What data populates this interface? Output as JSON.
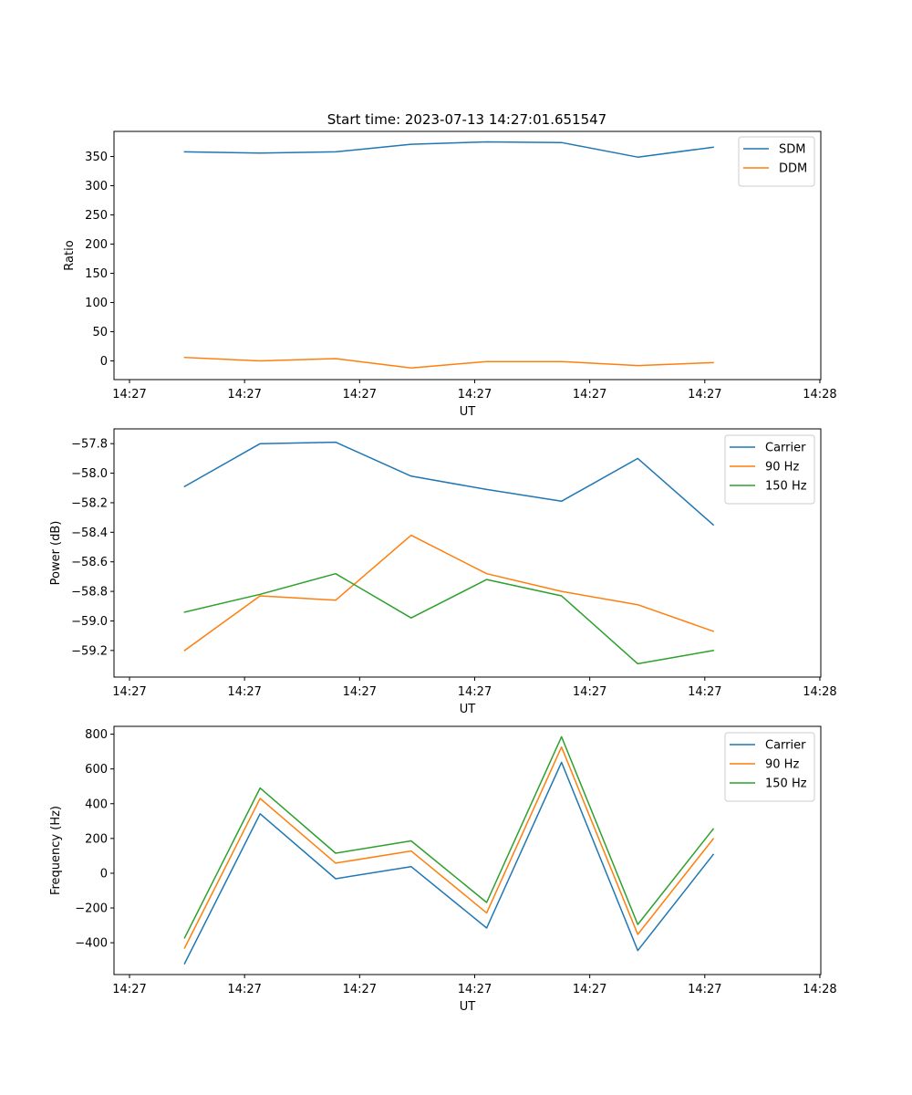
{
  "chart_data": [
    {
      "type": "line",
      "title": "Start time: 2023-07-13 14:27:01.651547",
      "xlabel": "UT",
      "ylabel": "Ratio",
      "grid": false,
      "legend": "upper right",
      "xlim": [
        0,
        1
      ],
      "x": [
        0.078,
        0.185,
        0.292,
        0.399,
        0.506,
        0.612,
        0.72,
        0.827
      ],
      "xticks": [
        {
          "pos": 0.0,
          "label": "14:27"
        },
        {
          "pos": 0.163,
          "label": "14:27"
        },
        {
          "pos": 0.326,
          "label": "14:27"
        },
        {
          "pos": 0.489,
          "label": "14:27"
        },
        {
          "pos": 0.652,
          "label": "14:27"
        },
        {
          "pos": 0.815,
          "label": "14:27"
        },
        {
          "pos": 0.978,
          "label": "14:28"
        }
      ],
      "ylim": [
        -32,
        393
      ],
      "yticks": [
        0,
        50,
        100,
        150,
        200,
        250,
        300,
        350
      ],
      "ytick_labels": [
        "0",
        "50",
        "100",
        "150",
        "200",
        "250",
        "300",
        "350"
      ],
      "series": [
        {
          "name": "SDM",
          "color": "#1f77b4",
          "values": [
            358,
            356,
            358,
            371,
            375,
            374,
            349,
            366
          ]
        },
        {
          "name": "DDM",
          "color": "#ff7f0e",
          "values": [
            6,
            0,
            4,
            -12,
            -1,
            -1,
            -8,
            -3
          ]
        }
      ]
    },
    {
      "type": "line",
      "title": "",
      "xlabel": "UT",
      "ylabel": "Power (dB)",
      "grid": false,
      "legend": "upper right",
      "xlim": [
        0,
        1
      ],
      "x": [
        0.078,
        0.185,
        0.292,
        0.399,
        0.506,
        0.612,
        0.72,
        0.827
      ],
      "xticks": [
        {
          "pos": 0.0,
          "label": "14:27"
        },
        {
          "pos": 0.163,
          "label": "14:27"
        },
        {
          "pos": 0.326,
          "label": "14:27"
        },
        {
          "pos": 0.489,
          "label": "14:27"
        },
        {
          "pos": 0.652,
          "label": "14:27"
        },
        {
          "pos": 0.815,
          "label": "14:27"
        },
        {
          "pos": 0.978,
          "label": "14:28"
        }
      ],
      "ylim": [
        -59.38,
        -57.7
      ],
      "yticks": [
        -59.2,
        -59.0,
        -58.8,
        -58.6,
        -58.4,
        -58.2,
        -58.0,
        -57.8
      ],
      "ytick_labels": [
        "−59.2",
        "−59.0",
        "−58.8",
        "−58.6",
        "−58.4",
        "−58.2",
        "−58.0",
        "−57.8"
      ],
      "series": [
        {
          "name": "Carrier",
          "color": "#1f77b4",
          "values": [
            -58.09,
            -57.8,
            -57.79,
            -58.02,
            -58.11,
            -58.19,
            -57.9,
            -58.35
          ]
        },
        {
          "name": "90 Hz",
          "color": "#ff7f0e",
          "values": [
            -59.2,
            -58.83,
            -58.86,
            -58.42,
            -58.68,
            -58.8,
            -58.89,
            -59.07
          ]
        },
        {
          "name": "150 Hz",
          "color": "#2ca02c",
          "values": [
            -58.94,
            -58.82,
            -58.68,
            -58.98,
            -58.72,
            -58.83,
            -59.29,
            -59.2
          ]
        }
      ]
    },
    {
      "type": "line",
      "title": "",
      "xlabel": "UT",
      "ylabel": "Frequency (Hz)",
      "grid": false,
      "legend": "upper right",
      "xlim": [
        0,
        1
      ],
      "x": [
        0.078,
        0.185,
        0.292,
        0.399,
        0.506,
        0.612,
        0.72,
        0.827
      ],
      "xticks": [
        {
          "pos": 0.0,
          "label": "14:27"
        },
        {
          "pos": 0.163,
          "label": "14:27"
        },
        {
          "pos": 0.326,
          "label": "14:27"
        },
        {
          "pos": 0.489,
          "label": "14:27"
        },
        {
          "pos": 0.652,
          "label": "14:27"
        },
        {
          "pos": 0.815,
          "label": "14:27"
        },
        {
          "pos": 0.978,
          "label": "14:28"
        }
      ],
      "ylim": [
        -583,
        845
      ],
      "yticks": [
        -400,
        -200,
        0,
        200,
        400,
        600,
        800
      ],
      "ytick_labels": [
        "−400",
        "−200",
        "0",
        "200",
        "400",
        "600",
        "800"
      ],
      "series": [
        {
          "name": "Carrier",
          "color": "#1f77b4",
          "values": [
            -520,
            342,
            -32,
            38,
            -315,
            638,
            -445,
            108
          ]
        },
        {
          "name": "90 Hz",
          "color": "#ff7f0e",
          "values": [
            -430,
            430,
            58,
            128,
            -228,
            726,
            -352,
            198
          ]
        },
        {
          "name": "150 Hz",
          "color": "#2ca02c",
          "values": [
            -372,
            490,
            115,
            186,
            -168,
            785,
            -295,
            255
          ]
        }
      ]
    }
  ]
}
